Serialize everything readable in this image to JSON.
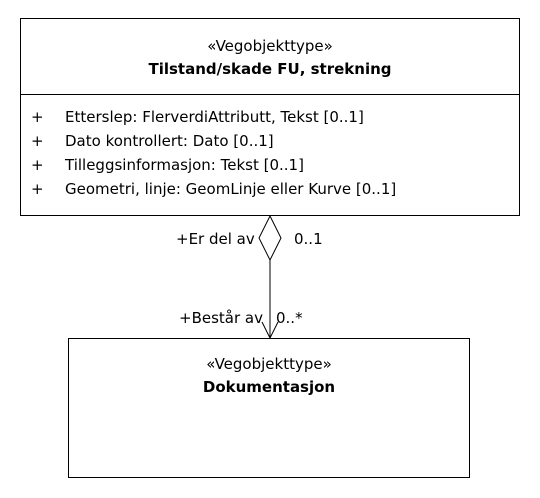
{
  "classes": {
    "main": {
      "stereotype": "«Vegobjekttype»",
      "name": "Tilstand/skade FU, strekning",
      "attributes": [
        {
          "visibility": "+",
          "text": "Etterslep: FlerverdiAttributt, Tekst [0..1]"
        },
        {
          "visibility": "+",
          "text": "Dato kontrollert: Dato [0..1]"
        },
        {
          "visibility": "+",
          "text": "Tilleggsinformasjon: Tekst [0..1]"
        },
        {
          "visibility": "+",
          "text": "Geometri, linje: GeomLinje eller Kurve [0..1]"
        }
      ]
    },
    "doc": {
      "stereotype": "«Vegobjekttype»",
      "name": "Dokumentasjon"
    }
  },
  "association": {
    "type": "aggregation",
    "source_role": "+Er del av",
    "source_multiplicity": "0..1",
    "target_role": "+Består av",
    "target_multiplicity": "0..*"
  }
}
